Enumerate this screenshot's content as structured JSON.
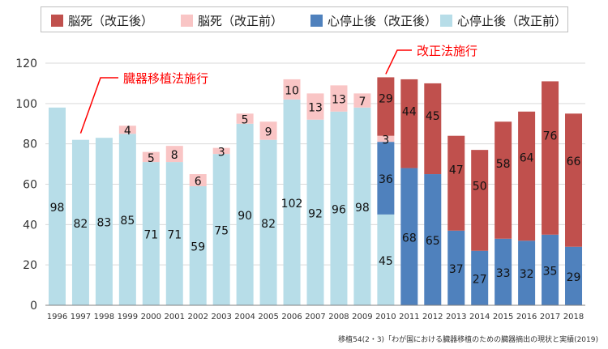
{
  "chart_data": {
    "type": "bar",
    "stacked": true,
    "categories": [
      "1996",
      "1997",
      "1998",
      "1999",
      "2000",
      "2001",
      "2002",
      "2003",
      "2004",
      "2005",
      "2006",
      "2007",
      "2008",
      "2009",
      "2010",
      "2011",
      "2012",
      "2013",
      "2014",
      "2015",
      "2016",
      "2017",
      "2018"
    ],
    "series": [
      {
        "name": "心停止後（改正前）",
        "color": "#b7dde8",
        "values": [
          98,
          82,
          83,
          85,
          71,
          71,
          59,
          75,
          90,
          82,
          102,
          92,
          96,
          98,
          45,
          0,
          0,
          0,
          0,
          0,
          0,
          0,
          0
        ]
      },
      {
        "name": "脳死（改正前）",
        "color": "#f9c5c5",
        "values": [
          0,
          0,
          0,
          4,
          5,
          8,
          6,
          3,
          5,
          9,
          10,
          13,
          13,
          7,
          3,
          0,
          0,
          0,
          0,
          0,
          0,
          0,
          0
        ]
      },
      {
        "name": "心停止後（改正後）",
        "color": "#4f81bd",
        "values": [
          0,
          0,
          0,
          0,
          0,
          0,
          0,
          0,
          0,
          0,
          0,
          0,
          0,
          0,
          36,
          68,
          65,
          37,
          27,
          33,
          32,
          35,
          29
        ]
      },
      {
        "name": "脳死（改正後）",
        "color": "#c0504d",
        "values": [
          0,
          0,
          0,
          0,
          0,
          0,
          0,
          0,
          0,
          0,
          0,
          0,
          0,
          0,
          29,
          44,
          45,
          47,
          50,
          58,
          64,
          76,
          66
        ]
      }
    ],
    "legend_order": [
      3,
      1,
      2,
      0
    ],
    "ylim": [
      0,
      120
    ],
    "yticks": [
      0,
      20,
      40,
      60,
      80,
      100,
      120
    ],
    "grid": true,
    "legend_position": "top",
    "annotations": [
      {
        "text": "臓器移植法施行",
        "category": "1997",
        "color": "#ff0000"
      },
      {
        "text": "改正法施行",
        "category": "2010",
        "color": "#ff0000"
      }
    ]
  },
  "source_note": "移植54(2・3)「わが国における臓器移植のための臓器摘出の現状と実績(2019)"
}
